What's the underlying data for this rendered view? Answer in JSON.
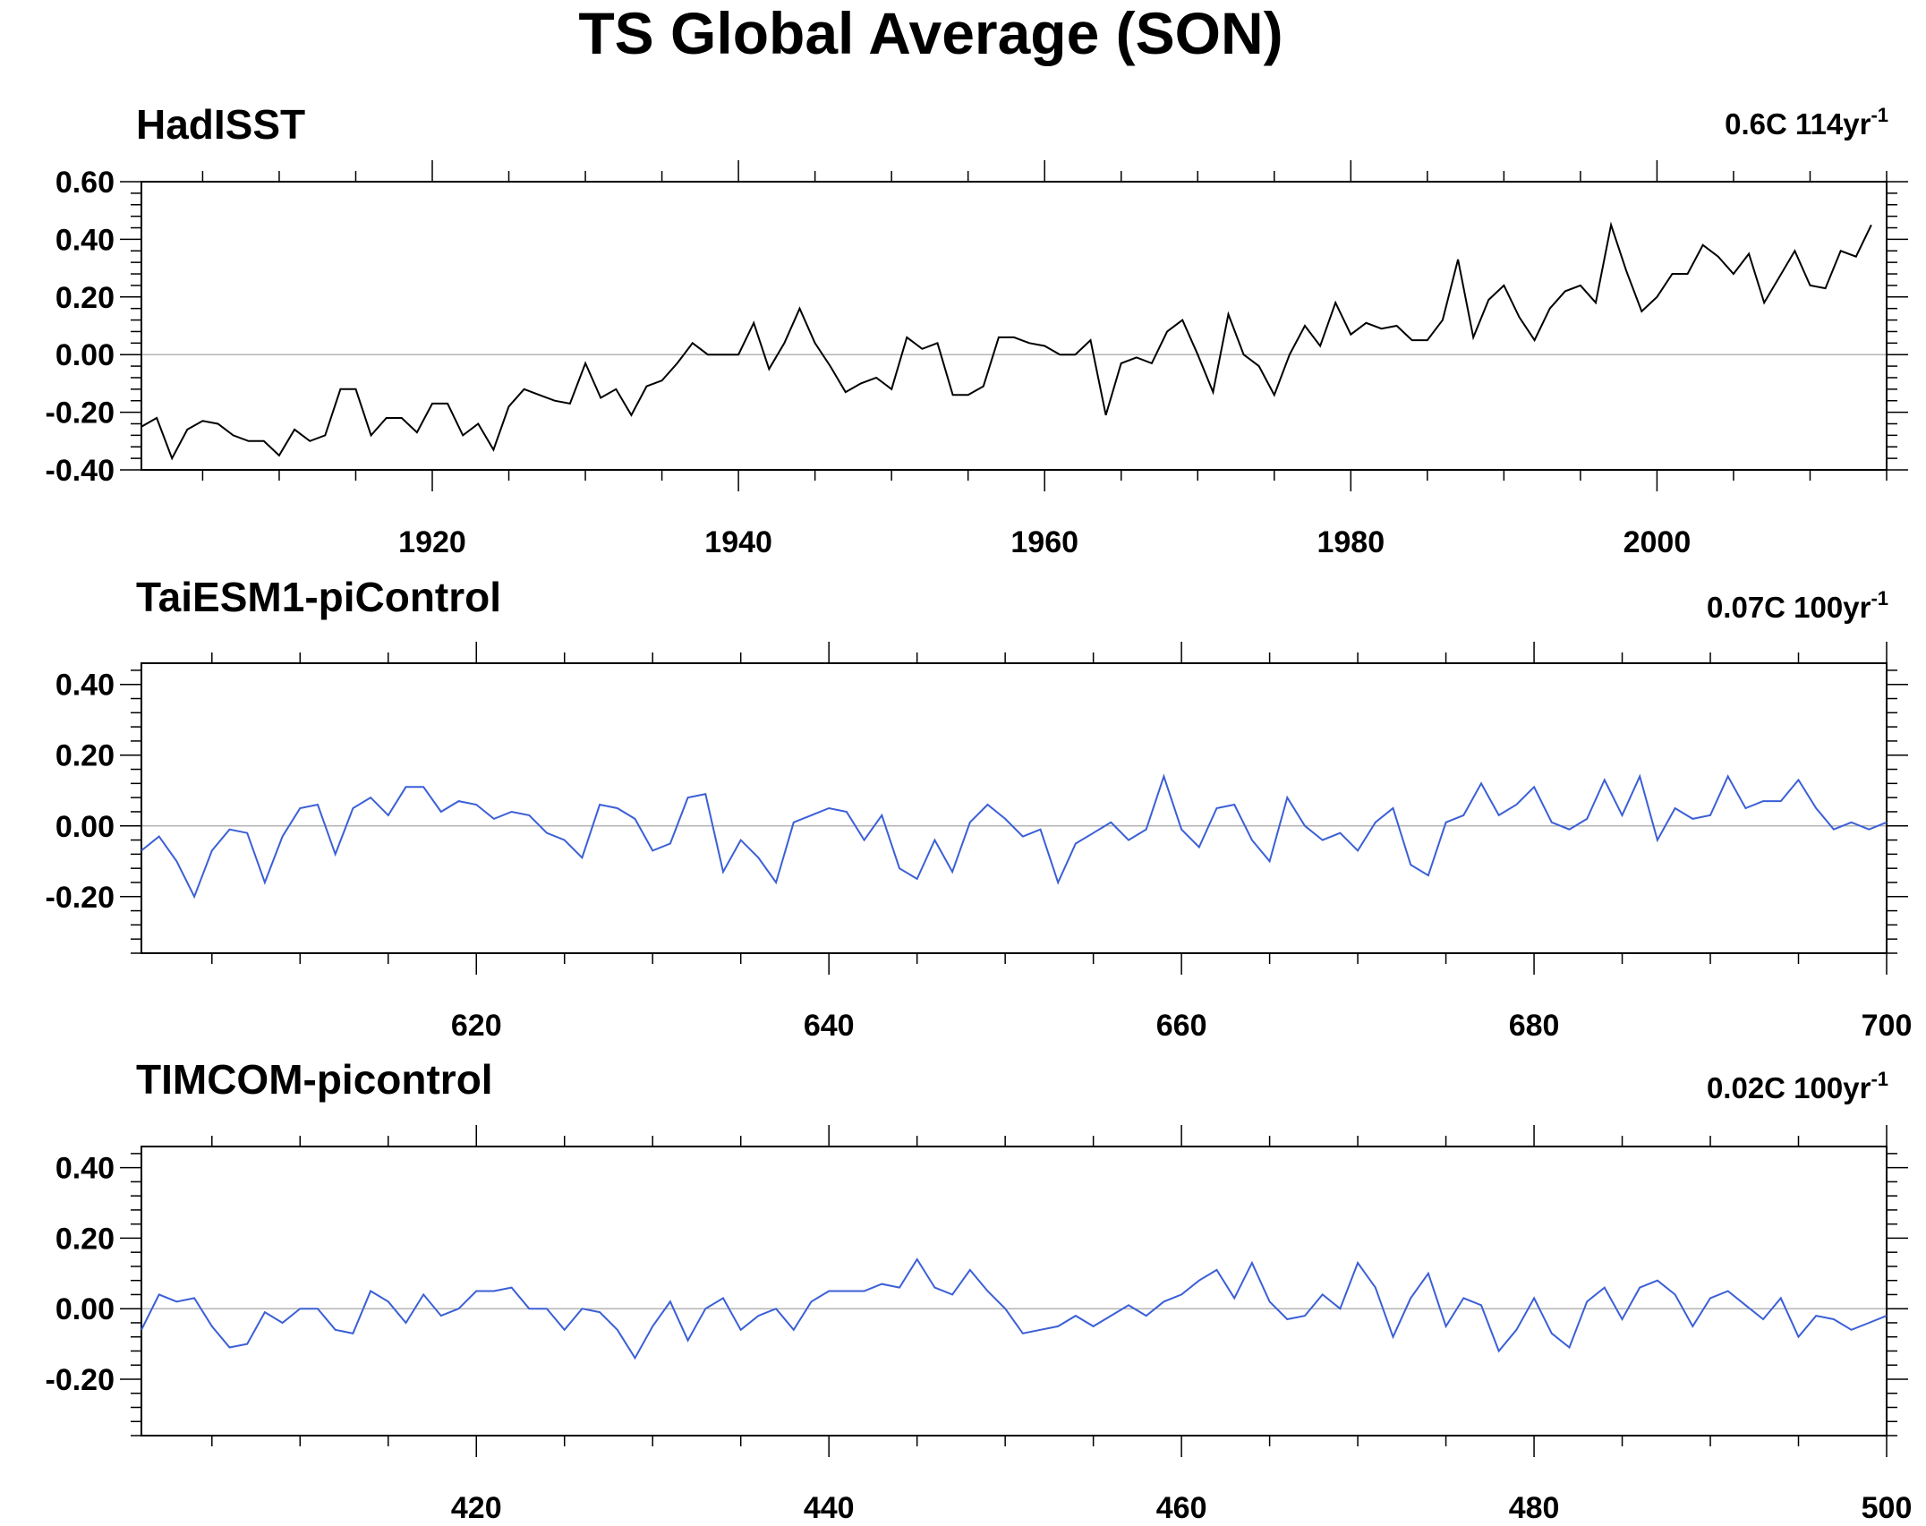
{
  "figure": {
    "title": "TS Global Average (SON)"
  },
  "chart_data": [
    {
      "type": "line",
      "title": "HadISST",
      "trend_label": {
        "value": "0.6C 114yr",
        "superscript": "-1"
      },
      "xlim": [
        1901,
        2015
      ],
      "ylim": [
        -0.4,
        0.6
      ],
      "xticks": [
        1920,
        1940,
        1960,
        1980,
        2000
      ],
      "xtick_labels": [
        "1920",
        "1940",
        "1960",
        "1980",
        "2000"
      ],
      "yticks": [
        -0.4,
        -0.2,
        0.0,
        0.2,
        0.4,
        0.6
      ],
      "ytick_labels": [
        "-0.40",
        "-0.20",
        "0.00",
        "0.20",
        "0.40",
        "0.60"
      ],
      "zero_line": true,
      "series": [
        {
          "color": "#000000",
          "x_start": 1901,
          "x_step": 1,
          "values": [
            -0.25,
            -0.22,
            -0.36,
            -0.26,
            -0.23,
            -0.24,
            -0.28,
            -0.3,
            -0.3,
            -0.35,
            -0.26,
            -0.3,
            -0.28,
            -0.12,
            -0.12,
            -0.28,
            -0.22,
            -0.22,
            -0.27,
            -0.17,
            -0.17,
            -0.28,
            -0.24,
            -0.33,
            -0.18,
            -0.12,
            -0.14,
            -0.16,
            -0.17,
            -0.03,
            -0.15,
            -0.12,
            -0.21,
            -0.11,
            -0.09,
            -0.03,
            0.04,
            0.0,
            0.0,
            0.0,
            0.11,
            -0.05,
            0.04,
            0.16,
            0.04,
            -0.04,
            -0.13,
            -0.1,
            -0.08,
            -0.12,
            0.06,
            0.02,
            0.04,
            -0.14,
            -0.14,
            -0.11,
            0.06,
            0.06,
            0.04,
            0.03,
            0.0,
            0.0,
            0.05,
            -0.21,
            -0.03,
            -0.01,
            -0.03,
            0.08,
            0.12,
            0.0,
            -0.13,
            0.14,
            0.0,
            -0.04,
            -0.14,
            0.0,
            0.1,
            0.03,
            0.18,
            0.07,
            0.11,
            0.09,
            0.1,
            0.05,
            0.05,
            0.12,
            0.33,
            0.06,
            0.19,
            0.24,
            0.13,
            0.05,
            0.16,
            0.22,
            0.24,
            0.18,
            0.45,
            0.29,
            0.15,
            0.2,
            0.28,
            0.28,
            0.38,
            0.34,
            0.28,
            0.35,
            0.18,
            0.27,
            0.36,
            0.24,
            0.23,
            0.36,
            0.34,
            0.45
          ]
        }
      ]
    },
    {
      "type": "line",
      "title": "TaiESM1-piControl",
      "trend_label": {
        "value": "0.07C 100yr",
        "superscript": "-1"
      },
      "xlim": [
        601,
        700
      ],
      "ylim": [
        -0.36,
        0.46
      ],
      "xticks": [
        620,
        640,
        660,
        680,
        700
      ],
      "xtick_labels": [
        "620",
        "640",
        "660",
        "680",
        "700"
      ],
      "yticks": [
        -0.2,
        0.0,
        0.2,
        0.4
      ],
      "ytick_labels": [
        "-0.20",
        "0.00",
        "0.20",
        "0.40"
      ],
      "zero_line": true,
      "series": [
        {
          "color": "#3b5fd6",
          "x_start": 601,
          "x_step": 1,
          "values": [
            -0.07,
            -0.03,
            -0.1,
            -0.2,
            -0.07,
            -0.01,
            -0.02,
            -0.16,
            -0.03,
            0.05,
            0.06,
            -0.08,
            0.05,
            0.08,
            0.03,
            0.11,
            0.11,
            0.04,
            0.07,
            0.06,
            0.02,
            0.04,
            0.03,
            -0.02,
            -0.04,
            -0.09,
            0.06,
            0.05,
            0.02,
            -0.07,
            -0.05,
            0.08,
            0.09,
            -0.13,
            -0.04,
            -0.09,
            -0.16,
            0.01,
            0.03,
            0.05,
            0.04,
            -0.04,
            0.03,
            -0.12,
            -0.15,
            -0.04,
            -0.13,
            0.01,
            0.06,
            0.02,
            -0.03,
            -0.01,
            -0.16,
            -0.05,
            -0.02,
            0.01,
            -0.04,
            -0.01,
            0.14,
            -0.01,
            -0.06,
            0.05,
            0.06,
            -0.04,
            -0.1,
            0.08,
            0.0,
            -0.04,
            -0.02,
            -0.07,
            0.01,
            0.05,
            -0.11,
            -0.14,
            0.01,
            0.03,
            0.12,
            0.03,
            0.06,
            0.11,
            0.01,
            -0.01,
            0.02,
            0.13,
            0.03,
            0.14,
            -0.04,
            0.05,
            0.02,
            0.03,
            0.14,
            0.05,
            0.07,
            0.07,
            0.13,
            0.05,
            -0.01,
            0.01,
            -0.01,
            0.01
          ]
        }
      ]
    },
    {
      "type": "line",
      "title": "TIMCOM-picontrol",
      "trend_label": {
        "value": "0.02C 100yr",
        "superscript": "-1"
      },
      "xlim": [
        401,
        500
      ],
      "ylim": [
        -0.36,
        0.46
      ],
      "xticks": [
        420,
        440,
        460,
        480,
        500
      ],
      "xtick_labels": [
        "420",
        "440",
        "460",
        "480",
        "500"
      ],
      "yticks": [
        -0.2,
        0.0,
        0.2,
        0.4
      ],
      "ytick_labels": [
        "-0.20",
        "0.00",
        "0.20",
        "0.40"
      ],
      "zero_line": true,
      "series": [
        {
          "color": "#3b5fd6",
          "x_start": 401,
          "x_step": 1,
          "values": [
            -0.06,
            0.04,
            0.02,
            0.03,
            -0.05,
            -0.11,
            -0.1,
            -0.01,
            -0.04,
            0.0,
            0.0,
            -0.06,
            -0.07,
            0.05,
            0.02,
            -0.04,
            0.04,
            -0.02,
            0.0,
            0.05,
            0.05,
            0.06,
            0.0,
            0.0,
            -0.06,
            0.0,
            -0.01,
            -0.06,
            -0.14,
            -0.05,
            0.02,
            -0.09,
            0.0,
            0.03,
            -0.06,
            -0.02,
            0.0,
            -0.06,
            0.02,
            0.05,
            0.05,
            0.05,
            0.07,
            0.06,
            0.14,
            0.06,
            0.04,
            0.11,
            0.05,
            0.0,
            -0.07,
            -0.06,
            -0.05,
            -0.02,
            -0.05,
            -0.02,
            0.01,
            -0.02,
            0.02,
            0.04,
            0.08,
            0.11,
            0.03,
            0.13,
            0.02,
            -0.03,
            -0.02,
            0.04,
            0.0,
            0.13,
            0.06,
            -0.08,
            0.03,
            0.1,
            -0.05,
            0.03,
            0.01,
            -0.12,
            -0.06,
            0.03,
            -0.07,
            -0.11,
            0.02,
            0.06,
            -0.03,
            0.06,
            0.08,
            0.04,
            -0.05,
            0.03,
            0.05,
            0.01,
            -0.03,
            0.03,
            -0.08,
            -0.02,
            -0.03,
            -0.06,
            -0.04,
            -0.02
          ]
        }
      ]
    }
  ]
}
